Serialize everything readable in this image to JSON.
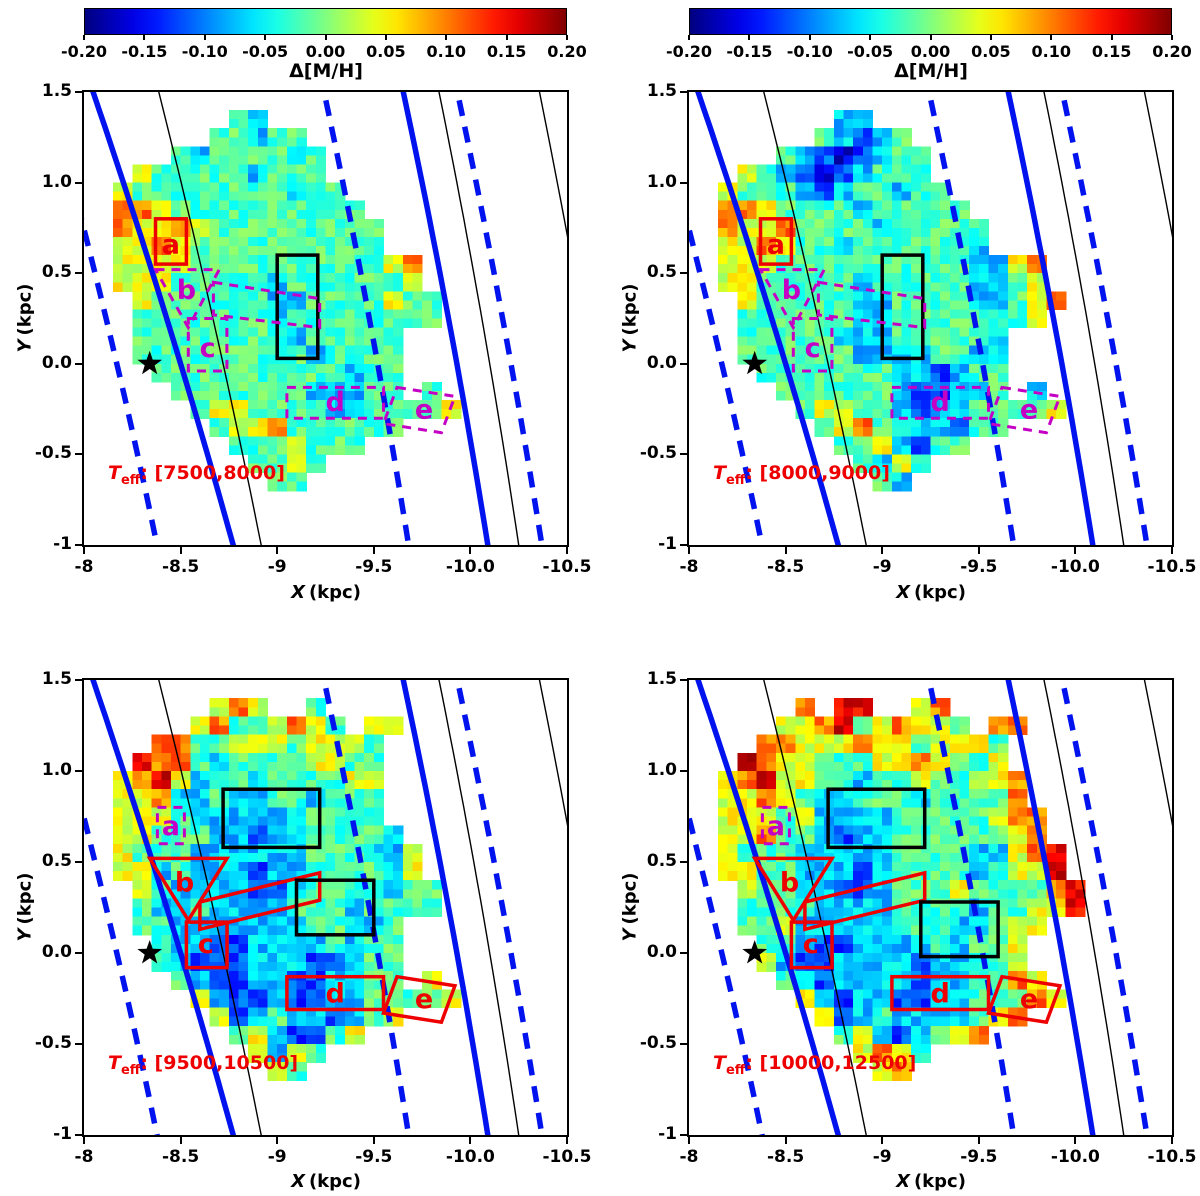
{
  "figure": {
    "colorbar": {
      "label": "Δ[M/H]",
      "vmin": -0.2,
      "vmax": 0.2,
      "ticks": [
        {
          "v": -0.2,
          "t": "-0.20"
        },
        {
          "v": -0.15,
          "t": "-0.15"
        },
        {
          "v": -0.1,
          "t": "-0.10"
        },
        {
          "v": -0.05,
          "t": "-0.05"
        },
        {
          "v": 0.0,
          "t": "0.00"
        },
        {
          "v": 0.05,
          "t": "0.05"
        },
        {
          "v": 0.1,
          "t": "0.10"
        },
        {
          "v": 0.15,
          "t": "0.15"
        },
        {
          "v": 0.2,
          "t": "0.20"
        }
      ]
    },
    "axes": {
      "x_var": "X",
      "y_var": "Y",
      "unit": "(kpc)",
      "xticks": [
        {
          "v": -8,
          "t": "-8"
        },
        {
          "v": -8.5,
          "t": "-8.5"
        },
        {
          "v": -9,
          "t": "-9"
        },
        {
          "v": -9.5,
          "t": "-9.5"
        },
        {
          "v": -10,
          "t": "-10.0"
        },
        {
          "v": -10.5,
          "t": "-10.5"
        }
      ],
      "yticks": [
        {
          "v": 1.5,
          "t": "1.5"
        },
        {
          "v": 1.0,
          "t": "1.0"
        },
        {
          "v": 0.5,
          "t": "0.5"
        },
        {
          "v": 0.0,
          "t": "0.0"
        },
        {
          "v": -0.5,
          "t": "-0.5"
        },
        {
          "v": -1,
          "t": "-1"
        }
      ]
    }
  },
  "chart_data": {
    "type": "heatmap",
    "xlabel": "X (kpc)",
    "ylabel": "Y (kpc)",
    "xlim": [
      -8,
      -10.5
    ],
    "ylim": [
      -1,
      1.5
    ],
    "value_label": "Δ[M/H]",
    "value_range": [
      -0.2,
      0.2
    ],
    "colormap": "jet",
    "grid": {
      "x0": -8.15,
      "dx": -0.1,
      "y0": 1.4,
      "dy": -0.1,
      "cols": 20,
      "rows": 21,
      "legend": {
        "B": -0.17,
        "b": -0.12,
        "c": -0.07,
        "g": -0.02,
        "y": 0.04,
        "o": 0.1,
        "r": 0.16
      }
    },
    "overlays": {
      "sun": {
        "x": -8.34,
        "y": 0.0
      },
      "arcs": [
        {
          "style": "solid-blue",
          "a": -8.5,
          "b": 0.284,
          "c": 0.012
        },
        {
          "style": "dashed-blue",
          "a": -8.17,
          "b": 0.22,
          "c": 0.012
        },
        {
          "style": "thin-black",
          "a": -8.72,
          "b": 0.207,
          "c": 0.01
        },
        {
          "style": "dashed-blue",
          "a": -9.52,
          "b": 0.17,
          "c": 0.01
        },
        {
          "style": "solid-blue",
          "a": -9.93,
          "b": 0.17,
          "c": 0.01
        },
        {
          "style": "dashed-blue",
          "a": -10.21,
          "b": 0.17,
          "c": 0.01
        },
        {
          "style": "thin-black",
          "a": -10.1,
          "b": 0.16,
          "c": 0.01
        },
        {
          "style": "thin-black",
          "a": -10.62,
          "b": 0.16,
          "c": 0.01
        }
      ],
      "regions": {
        "top": [
          {
            "shape": "rect",
            "style": "red-solid",
            "x": [
              -8.37,
              -8.53
            ],
            "y": [
              0.55,
              0.8
            ],
            "label": "a",
            "lx": -8.45,
            "ly": 0.65
          },
          {
            "shape": "rect",
            "style": "black-solid",
            "x": [
              -9.0,
              -9.21
            ],
            "y": [
              0.03,
              0.6
            ]
          },
          {
            "shape": "poly",
            "style": "magenta-dashed",
            "pts": [
              [
                -8.37,
                0.52
              ],
              [
                -8.7,
                0.52
              ],
              [
                -8.54,
                0.2
              ]
            ],
            "label": "b",
            "lx": -8.53,
            "ly": 0.4
          },
          {
            "shape": "poly",
            "style": "magenta-dashed",
            "pts": [
              [
                -8.67,
                0.45
              ],
              [
                -9.22,
                0.36
              ],
              [
                -9.22,
                0.2
              ],
              [
                -8.67,
                0.27
              ]
            ]
          },
          {
            "shape": "rect",
            "style": "magenta-dashed",
            "x": [
              -8.54,
              -8.74
            ],
            "y": [
              -0.04,
              0.25
            ],
            "label": "c",
            "lx": -8.64,
            "ly": 0.08
          },
          {
            "shape": "rect",
            "style": "magenta-dashed",
            "x": [
              -9.05,
              -9.55
            ],
            "y": [
              -0.3,
              -0.13
            ],
            "label": "d",
            "lx": -9.3,
            "ly": -0.22
          },
          {
            "shape": "poly",
            "style": "magenta-dashed",
            "pts": [
              [
                -9.62,
                -0.13
              ],
              [
                -9.92,
                -0.18
              ],
              [
                -9.85,
                -0.38
              ],
              [
                -9.55,
                -0.33
              ]
            ],
            "label": "e",
            "lx": -9.76,
            "ly": -0.26
          }
        ],
        "bottom": [
          {
            "shape": "rect",
            "style": "magenta-dashed",
            "x": [
              -8.38,
              -8.52
            ],
            "y": [
              0.6,
              0.8
            ],
            "label": "a",
            "lx": -8.45,
            "ly": 0.69
          },
          {
            "shape": "rect",
            "style": "black-solid",
            "x": [
              -8.72,
              -9.22
            ],
            "y": [
              0.58,
              0.9
            ]
          },
          {
            "shape": "poly",
            "style": "red-solid",
            "pts": [
              [
                -8.34,
                0.52
              ],
              [
                -8.74,
                0.52
              ],
              [
                -8.54,
                0.18
              ]
            ],
            "label": "b",
            "lx": -8.52,
            "ly": 0.38
          },
          {
            "shape": "poly",
            "style": "red-solid",
            "pts": [
              [
                -8.6,
                0.28
              ],
              [
                -9.22,
                0.44
              ],
              [
                -9.22,
                0.29
              ],
              [
                -8.6,
                0.13
              ]
            ]
          },
          {
            "shape": "rect",
            "style": "red-solid",
            "x": [
              -8.53,
              -8.74
            ],
            "y": [
              -0.08,
              0.17
            ],
            "label": "c",
            "lx": -8.63,
            "ly": 0.04
          },
          {
            "shape": "rect",
            "style": "red-solid",
            "x": [
              -9.05,
              -9.55
            ],
            "y": [
              -0.31,
              -0.13
            ],
            "label": "d",
            "lx": -9.3,
            "ly": -0.23
          },
          {
            "shape": "poly",
            "style": "red-solid",
            "pts": [
              [
                -9.62,
                -0.13
              ],
              [
                -9.92,
                -0.18
              ],
              [
                -9.85,
                -0.38
              ],
              [
                -9.55,
                -0.33
              ]
            ],
            "label": "e",
            "lx": -9.76,
            "ly": -0.26
          }
        ]
      }
    },
    "panels": [
      {
        "id": "teff-7500-8000",
        "annotation": {
          "var": "T",
          "sub": "eff",
          "rest": ": [7500,8000]"
        },
        "regions": "top",
        "extra_regions": [],
        "rows": [
          "......gc............",
          ".....ggcgg..........",
          "...gcggggcg.........",
          ".ygggggcggg.........",
          "yggggggggcgg........",
          "ooygggggggggg.......",
          "oyyoyggggggggg......",
          "yyoygggggggggg......",
          "yyyyggggggggggyo....",
          "yyygggggcggggggy....",
          ".yggggggccggggygg...",
          ".gggggggcgggggggg...",
          ".ggggggggcggggg.....",
          ".gggggggggcgggg.....",
          "..ggggggggggcgg.....",
          "...gggggggcccgg.g...",
          "....gyyggggccggggy..",
          ".....gyyogggggg.....",
          "......gggyggg.......",
          ".......ggyg.........",
          "........gg.........."
        ]
      },
      {
        "id": "teff-8000-9000",
        "annotation": {
          "var": "T",
          "sub": "eff",
          "rest": ": [8000,9000]"
        },
        "regions": "top",
        "extra_regions": [],
        "rows": [
          "......cc............",
          ".....gcbcg..........",
          "...gcbBbcgg.........",
          ".ygcbBbcggg.........",
          "ygggcbcggcgg........",
          "ooyggggcggggg.......",
          "oyyoggggcggggg......",
          "yyoyggcggggggc......",
          "yyyggggggggggccyo...",
          "yygggggcgggggccgy...",
          ".ygggggccggggccgyo..",
          ".ggggggccgggggggy...",
          ".gggggcccgggggc.....",
          ".ggggggccccggcc.....",
          "..gggggggccbcgg.....",
          "...ggggggcbbccg.c...",
          "....gyyggcbccggggy..",
          ".....gyoggccbgg.....",
          "......ggycbgg.......",
          ".......gcyg.........",
          "........gc.........."
        ]
      },
      {
        "id": "teff-9500-10500",
        "annotation": {
          "var": "T",
          "sub": "eff",
          "rest": ": [9500,10500]"
        },
        "regions": "bottom",
        "extra_regions": [
          {
            "shape": "rect",
            "style": "black-solid",
            "x": [
              -9.1,
              -9.5
            ],
            "y": [
              0.1,
              0.4
            ]
          }
        ],
        "rows": [
          ".....yoy..g.........",
          "....yoggyoyg.yy.....",
          "..ooggyyygyyyg......",
          ".roogcggggyygg......",
          "yorycggcggggyy......",
          "yyoccgccggcggg......",
          "yyygccccccgggg......",
          "yygggccbccggggc.....",
          "ygggccccccgggccy....",
          "yycgcccbccggggcy....",
          ".ygccccbbcggggcgg...",
          ".gccgccccgggcgggg...",
          ".ggcccccccggccg.....",
          "..gccbbccccgcgg.....",
          "..gcbbbcccbbcgg.....",
          "...gcbbccbbccgg.y...",
          "....ycbbcbbccggggy..",
          ".....ybcgccbcgy.....",
          "......gycbbgy.......",
          ".......ycyg.........",
          "........yg.........."
        ]
      },
      {
        "id": "teff-10000-12500",
        "annotation": {
          "var": "T",
          "sub": "eff",
          "rest": ": [10000,12500]"
        },
        "regions": "bottom",
        "extra_regions": [
          {
            "shape": "rect",
            "style": "black-solid",
            "x": [
              -9.2,
              -9.6
            ],
            "y": [
              -0.02,
              0.28
            ]
          }
        ],
        "rows": [
          "....o.rr..yo........",
          "...yyorgyoyyg.oo....",
          "..ooyyyoyygyyyg.....",
          ".royygggyyoyggy.....",
          "yoryyggcggyggyyo....",
          "yyoygccgggcggggo....",
          "yyygyccccgggggyoo...",
          "yyoggcbccggggggyo...",
          "ygggcccccggggccyor..",
          "yyggcccbcggggcgyyr..",
          ".yggccbbcgggyggggor.",
          ".ggggccccggggcggyyr.",
          ".ggycccccgggccgyy...",
          "..ggcbbccccgcggy....",
          "..ycbbccccbccggy....",
          "...gcbccccbccggoy...",
          "....ycbccbbccgggoy..",
          ".....ybcgccccgyo....",
          "......gycbcgyo......",
          ".......yoyg.........",
          "........yo.........."
        ]
      }
    ]
  }
}
